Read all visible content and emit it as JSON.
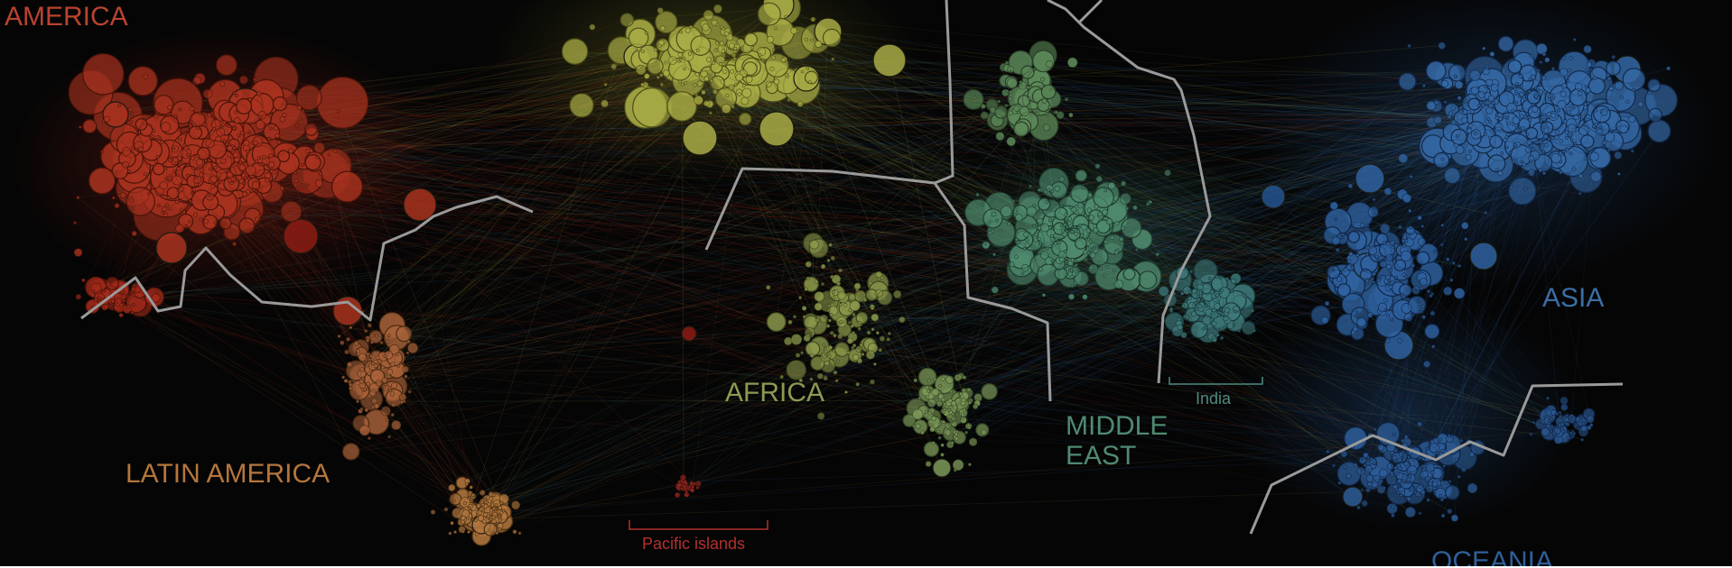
{
  "diagram": {
    "regions": [
      {
        "key": "north-america",
        "label": "AMERICA",
        "color": "#b8432f"
      },
      {
        "key": "europe",
        "label": "",
        "color": "#b5b94a"
      },
      {
        "key": "latin-america",
        "label": "LATIN AMERICA",
        "color": "#b4753c"
      },
      {
        "key": "africa",
        "label": "AFRICA",
        "color": "#8c9a52"
      },
      {
        "key": "middle-east",
        "label": "MIDDLE\nEAST",
        "color": "#4f8a72"
      },
      {
        "key": "asia",
        "label": "ASIA",
        "color": "#3a6ea5"
      },
      {
        "key": "oceania",
        "label": "OCEANIA",
        "color": "#2f5f9a"
      }
    ],
    "annotations": [
      {
        "key": "india",
        "label": "India",
        "color": "#4f8a80"
      },
      {
        "key": "pacific-islands",
        "label": "Pacific islands",
        "color": "#b3302e"
      }
    ],
    "colors": {
      "background": "#050505",
      "boundary": "#9a9a9a"
    }
  }
}
